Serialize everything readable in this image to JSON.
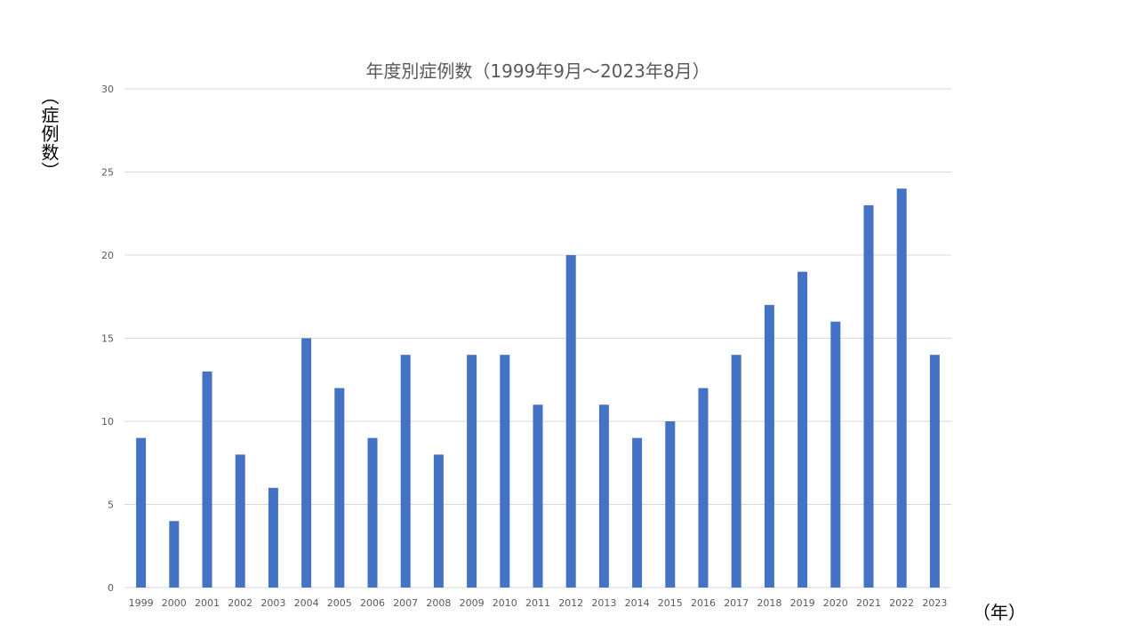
{
  "chart_data": {
    "type": "bar",
    "title": "年度別症例数（1999年9月～2023年8月）",
    "ylabel": "（症例数）",
    "xlabel": "（年）",
    "ylim": [
      0,
      30
    ],
    "yticks": [
      0,
      5,
      10,
      15,
      20,
      25,
      30
    ],
    "grid": true,
    "legend": "none",
    "bar_color": "#4472C4",
    "categories": [
      "1999",
      "2000",
      "2001",
      "2002",
      "2003",
      "2004",
      "2005",
      "2006",
      "2007",
      "2008",
      "2009",
      "2010",
      "2011",
      "2012",
      "2013",
      "2014",
      "2015",
      "2016",
      "2017",
      "2018",
      "2019",
      "2020",
      "2021",
      "2022",
      "2023"
    ],
    "values": [
      9,
      4,
      13,
      8,
      6,
      15,
      12,
      9,
      14,
      8,
      14,
      14,
      11,
      20,
      11,
      9,
      10,
      12,
      14,
      17,
      19,
      16,
      23,
      24,
      14
    ]
  }
}
